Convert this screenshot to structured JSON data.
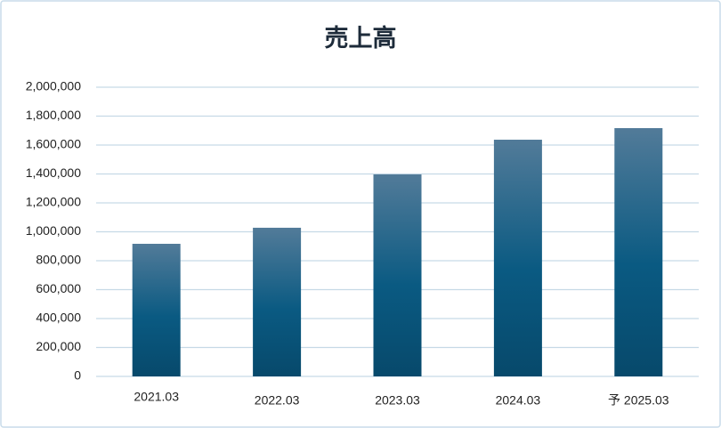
{
  "chart_data": {
    "type": "bar",
    "title": "売上高",
    "categories": [
      "2021.03",
      "2022.03",
      "2023.03",
      "2024.03",
      "予 2025.03"
    ],
    "values": [
      917000,
      1028000,
      1397000,
      1637000,
      1717000
    ],
    "colors": [
      "#527b99",
      "#0a5a82",
      "#07496b"
    ],
    "ylim": [
      0,
      2000000
    ],
    "yticks": [
      0,
      {
        "value": 200000,
        "label": "200,000"
      },
      {
        "value": 400000,
        "label": "400,000"
      },
      {
        "value": 600000,
        "label": "600,000"
      },
      {
        "value": 800000,
        "label": "800,000"
      },
      {
        "value": 1000000,
        "label": "1,000,000"
      },
      {
        "value": 1200000,
        "label": "1,200,000"
      },
      {
        "value": 1400000,
        "label": "1,400,000"
      },
      {
        "value": 1600000,
        "label": "1,600,000"
      },
      {
        "value": 1800000,
        "label": "1,800,000"
      },
      {
        "value": 2000000,
        "label": "2,000,000"
      }
    ],
    "grid": true
  }
}
